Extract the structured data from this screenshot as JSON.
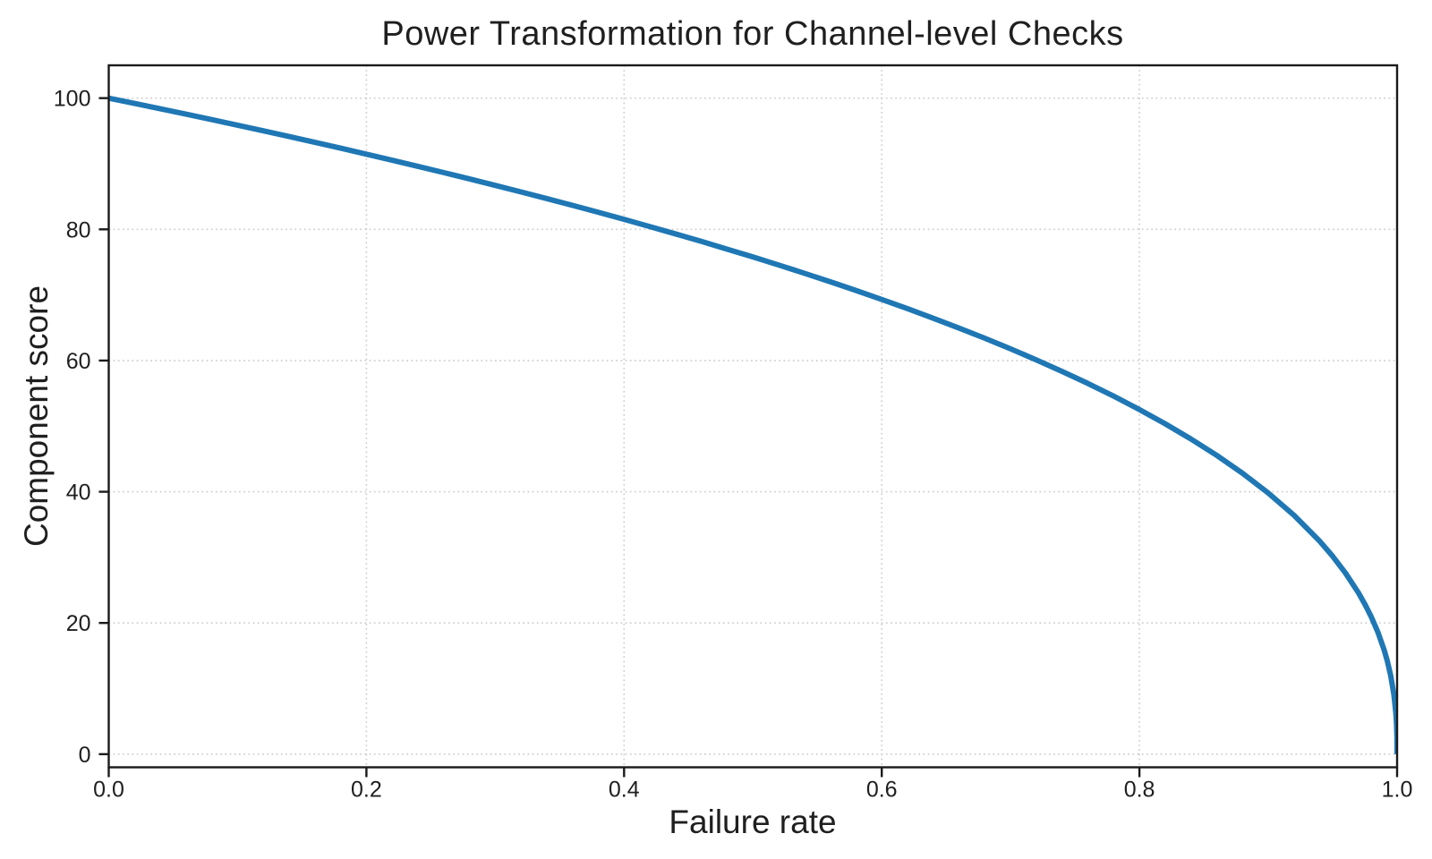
{
  "figure": {
    "background": "#ffffff"
  },
  "chart_data": {
    "type": "line",
    "title": "Power Transformation for Channel-level Checks",
    "xlabel": "Failure rate",
    "ylabel": "Component score",
    "xlim": [
      0.0,
      1.0
    ],
    "ylim": [
      -2,
      105
    ],
    "grid": true,
    "grid_style": "dotted",
    "grid_color": "#c9c9c9",
    "spine_color": "#1a1a1a",
    "text_color": "#1f1f1f",
    "xticks": {
      "values": [
        0.0,
        0.2,
        0.4,
        0.6,
        0.8,
        1.0
      ],
      "labels": [
        "0.0",
        "0.2",
        "0.4",
        "0.6",
        "0.8",
        "1.0"
      ]
    },
    "yticks": {
      "values": [
        0,
        20,
        40,
        60,
        80,
        100
      ],
      "labels": [
        "0",
        "20",
        "40",
        "60",
        "80",
        "100"
      ]
    },
    "series": [
      {
        "color": "#1f77b4",
        "line_width": 6,
        "x": [
          0,
          0.02,
          0.04,
          0.06,
          0.08,
          0.1,
          0.12,
          0.14,
          0.16,
          0.18,
          0.2,
          0.22,
          0.24,
          0.26,
          0.28,
          0.3,
          0.32,
          0.34,
          0.36,
          0.38,
          0.4,
          0.42,
          0.44,
          0.46,
          0.48,
          0.5,
          0.52,
          0.54,
          0.56,
          0.58,
          0.6,
          0.62,
          0.64,
          0.66,
          0.68,
          0.7,
          0.72,
          0.74,
          0.76,
          0.78,
          0.8,
          0.82,
          0.84,
          0.86,
          0.88,
          0.9,
          0.92,
          0.94,
          0.95,
          0.96,
          0.97,
          0.975,
          0.98,
          0.985,
          0.99,
          0.9925,
          0.995,
          0.9975,
          0.999,
          0.9995,
          0.9999,
          1.0
        ],
        "y": [
          100,
          99.19,
          98.38,
          97.56,
          96.72,
          95.87,
          95.01,
          94.15,
          93.26,
          92.37,
          91.46,
          90.54,
          89.6,
          88.65,
          87.69,
          86.7,
          85.7,
          84.69,
          83.65,
          82.6,
          81.52,
          80.42,
          79.3,
          78.16,
          76.98,
          75.79,
          74.56,
          73.3,
          72.01,
          70.68,
          69.31,
          67.91,
          66.45,
          64.95,
          63.4,
          61.78,
          60.1,
          58.34,
          56.51,
          54.57,
          52.53,
          50.36,
          48.04,
          45.55,
          42.82,
          39.81,
          36.41,
          32.45,
          30.17,
          27.59,
          24.6,
          22.86,
          20.91,
          18.64,
          15.85,
          14.13,
          12.01,
          9.1,
          6.31,
          4.78,
          2.51,
          0
        ]
      }
    ]
  }
}
